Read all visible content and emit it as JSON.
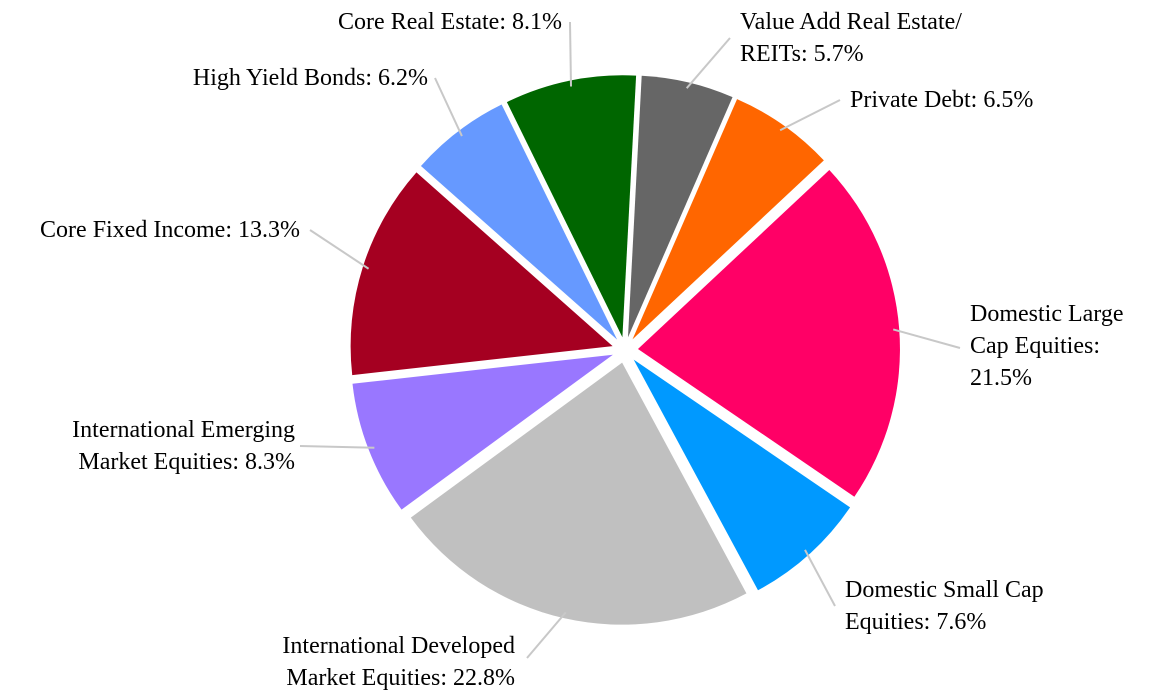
{
  "chart_data": {
    "type": "pie",
    "categories": [
      "Value Add Real Estate/ REITs:",
      "Private Debt:",
      "Domestic Large Cap Equities:",
      "Domestic Small Cap Equities:",
      "International Developed Market Equities:",
      "International Emerging Market Equities:",
      "Core Fixed Income:",
      "High Yield Bonds:",
      "Core Real Estate:"
    ],
    "values": [
      5.7,
      6.5,
      21.5,
      7.6,
      22.8,
      8.3,
      13.3,
      6.2,
      8.1
    ],
    "value_labels": [
      "5.7%",
      "6.5%",
      "21.5%",
      "7.6%",
      "22.8%",
      "8.3%",
      "13.3%",
      "6.2%",
      "8.1%"
    ],
    "colors": [
      "#666666",
      "#ff6600",
      "#ff0066",
      "#0099ff",
      "#c0c0c0",
      "#9977ff",
      "#a50021",
      "#6699ff",
      "#006600"
    ]
  }
}
